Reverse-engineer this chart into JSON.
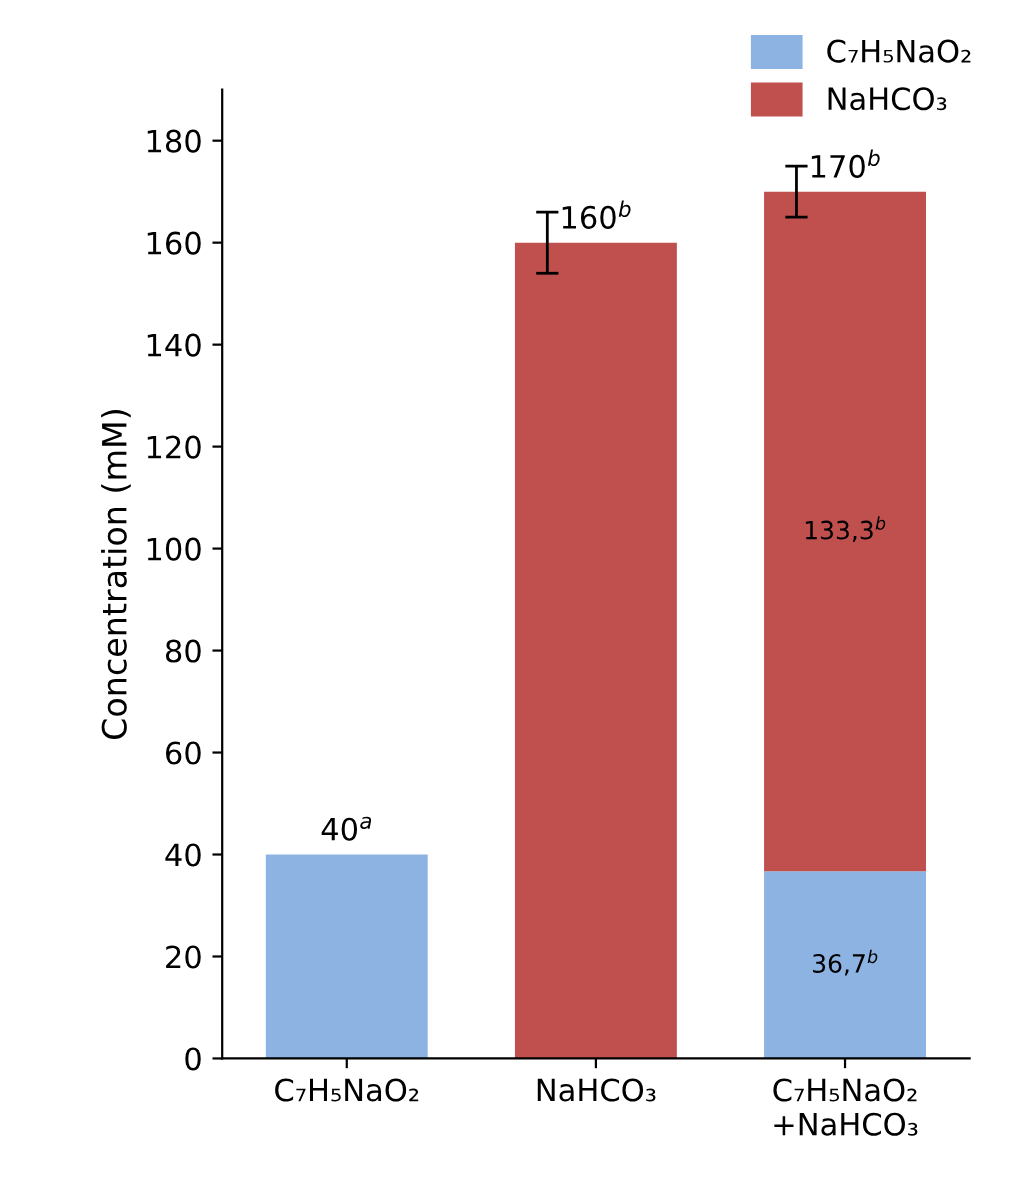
{
  "chart_data": {
    "type": "bar",
    "stacked": true,
    "ylabel": "Concentration (mM)",
    "categories": [
      "C₇H₅NaO₂",
      "NaHCO₃",
      "C₇H₅NaO₂\n+NaHCO₃"
    ],
    "series": [
      {
        "name": "C₇H₅NaO₂",
        "color": "#8db3e2",
        "values": [
          40,
          null,
          36.7
        ],
        "value_labels": [
          null,
          null,
          "36,7$^{b}$"
        ]
      },
      {
        "name": "NaHCO₃",
        "color": "#c0504d",
        "values": [
          null,
          160,
          133.3
        ],
        "value_labels": [
          null,
          null,
          "133,3$^{b}$"
        ],
        "errors": [
          null,
          6,
          5
        ]
      }
    ],
    "totals": [
      "40$^{a}$",
      "160$^{b}$",
      "170$^{b}$"
    ],
    "ylim": [
      0,
      190
    ],
    "yticks": [
      0,
      20,
      40,
      60,
      80,
      100,
      120,
      140,
      160,
      180
    ],
    "grid": false,
    "legend": "top right"
  }
}
